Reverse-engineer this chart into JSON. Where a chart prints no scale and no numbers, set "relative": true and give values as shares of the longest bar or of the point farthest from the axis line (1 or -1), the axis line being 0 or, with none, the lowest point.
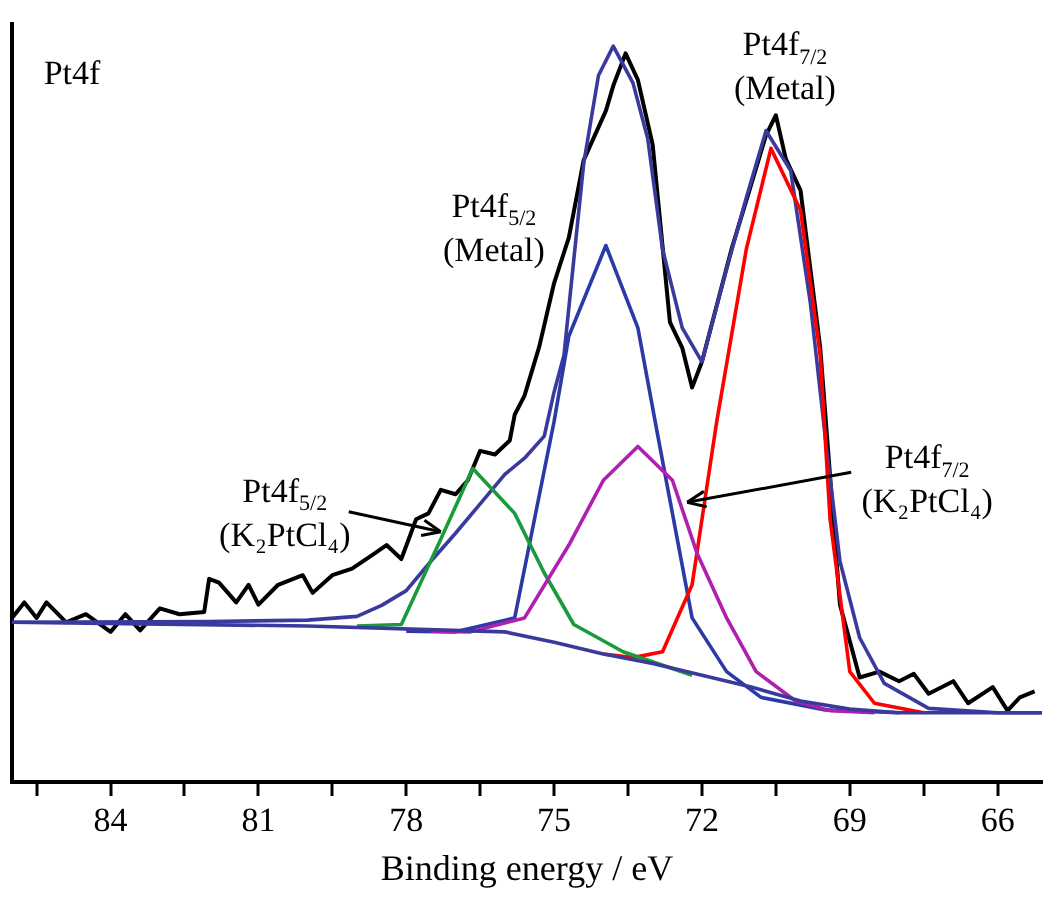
{
  "chart_data": {
    "type": "line",
    "xlabel": "Binding energy / eV",
    "xlim": [
      86,
      65.1
    ],
    "xticks": [
      84,
      {
        "value": 82.5,
        "label": null
      },
      81,
      {
        "value": 79.5,
        "label": null
      },
      78,
      {
        "value": 76.5,
        "label": null
      },
      75,
      {
        "value": 73.5,
        "label": null
      },
      72,
      {
        "value": 70.5,
        "label": null
      },
      69,
      {
        "value": 67.5,
        "label": null
      },
      66,
      {
        "value": 85.5,
        "label": null
      }
    ],
    "relative": true,
    "grid": false,
    "legend": false,
    "marker": "none",
    "line_style": "solid",
    "annotations": [
      "Pt4f",
      {
        "text": "Pt4f$_{5/2}$\n(Metal)",
        "x": 73.95,
        "y": 0.73
      },
      {
        "text": "Pt4f$_{7/2}$\n(Metal)",
        "x": 70.6,
        "y": 0.86
      },
      {
        "text": "Pt4f$_{5/2}$\n(K₂PtCl₄)",
        "x": 77.3,
        "y": 0.34
      },
      {
        "text": "Pt4f$_{7/2}$\n(K₂PtCl₄)",
        "x": 72.3,
        "y": 0.38
      }
    ],
    "series": [
      {
        "color": "#000000",
        "x": [
          86,
          85.75,
          85.5,
          85.3,
          84.9,
          84.5,
          84.0,
          83.7,
          83.4,
          83.0,
          82.6,
          82.1,
          82.0,
          81.8,
          81.45,
          81.2,
          81.0,
          80.6,
          80.1,
          79.9,
          79.5,
          79.1,
          78.7,
          78.4,
          78.1,
          77.8,
          77.55,
          77.3,
          77.0,
          76.75,
          76.5,
          76.2,
          75.9,
          75.8,
          75.6,
          75.3,
          75.0,
          74.7,
          74.4,
          73.95,
          73.8,
          73.55,
          73.3,
          73.0,
          72.65,
          72.4,
          72.2,
          72.0,
          71.4,
          71.0,
          70.7,
          70.5,
          70.3,
          70.0,
          69.6,
          69.2,
          68.8,
          68.4,
          68.0,
          67.7,
          67.4,
          66.9,
          66.6,
          66.1,
          65.8,
          65.55,
          65.25
        ],
        "values": [
          0.223,
          0.244,
          0.223,
          0.244,
          0.217,
          0.228,
          0.204,
          0.228,
          0.206,
          0.236,
          0.228,
          0.231,
          0.276,
          0.271,
          0.244,
          0.268,
          0.241,
          0.268,
          0.281,
          0.257,
          0.281,
          0.29,
          0.308,
          0.322,
          0.303,
          0.357,
          0.365,
          0.397,
          0.391,
          0.41,
          0.45,
          0.445,
          0.464,
          0.499,
          0.525,
          0.592,
          0.678,
          0.74,
          0.845,
          0.912,
          0.946,
          0.99,
          0.954,
          0.866,
          0.625,
          0.59,
          0.536,
          0.571,
          0.724,
          0.812,
          0.879,
          0.906,
          0.847,
          0.804,
          0.59,
          0.241,
          0.142,
          0.15,
          0.137,
          0.147,
          0.12,
          0.137,
          0.107,
          0.129,
          0.097,
          0.115,
          0.123
        ]
      },
      {
        "color": "#3a3a9e",
        "x": [
          86,
          82,
          80,
          79,
          78.5,
          78,
          77.5,
          77,
          76.5,
          76,
          75.6,
          75.2,
          75,
          74.8,
          74.4,
          74.1,
          73.8,
          73.4,
          73.1,
          72.8,
          72.4,
          72.0,
          71.5,
          71.1,
          70.7,
          70.2,
          69.8,
          69.5,
          69.2,
          68.8,
          68.3,
          67.4,
          66,
          65.1
        ],
        "values": [
          0.217,
          0.218,
          0.22,
          0.225,
          0.24,
          0.26,
          0.3,
          0.338,
          0.378,
          0.418,
          0.44,
          0.47,
          0.53,
          0.58,
          0.84,
          0.96,
          1.0,
          0.95,
          0.874,
          0.724,
          0.617,
          0.571,
          0.697,
          0.794,
          0.885,
          0.831,
          0.651,
          0.47,
          0.3,
          0.196,
          0.134,
          0.1,
          0.094,
          0.094
        ]
      },
      {
        "color": "#2b3aa6",
        "x": [
          78,
          77,
          75.8,
          75,
          74.7,
          73.95,
          73.3,
          72.9,
          72.2,
          71.5,
          70.8,
          69.5,
          68
        ],
        "values": [
          0.205,
          0.204,
          0.223,
          0.49,
          0.606,
          0.729,
          0.617,
          0.472,
          0.223,
          0.15,
          0.115,
          0.098,
          0.094
        ]
      },
      {
        "color": "#ff0000",
        "x": [
          74,
          73.4,
          72.8,
          72.2,
          71.7,
          71.1,
          70.6,
          70.0,
          69.6,
          69.4,
          69.0,
          68.5,
          67.5
        ],
        "values": [
          0.174,
          0.169,
          0.177,
          0.268,
          0.49,
          0.724,
          0.861,
          0.777,
          0.58,
          0.357,
          0.15,
          0.107,
          0.094
        ]
      },
      {
        "color": "#1a9a3a",
        "x": [
          79,
          78.1,
          77.3,
          76.65,
          75.8,
          75.2,
          74.6,
          73.6,
          72.9,
          72.2
        ],
        "values": [
          0.212,
          0.214,
          0.33,
          0.426,
          0.365,
          0.284,
          0.214,
          0.177,
          0.161,
          0.145
        ]
      },
      {
        "color": "#b020b0",
        "x": [
          77.5,
          76.7,
          75.6,
          74.7,
          74.0,
          73.3,
          72.6,
          72.1,
          71.5,
          70.9,
          70.1,
          69.4,
          68.5
        ],
        "values": [
          0.205,
          0.204,
          0.223,
          0.322,
          0.41,
          0.456,
          0.41,
          0.311,
          0.223,
          0.15,
          0.11,
          0.097,
          0.094
        ]
      },
      {
        "color": "#3a3a9e",
        "x": [
          86,
          80,
          76,
          75,
          74,
          73,
          72,
          71,
          70,
          69,
          68,
          65.1
        ],
        "values": [
          0.217,
          0.212,
          0.204,
          0.19,
          0.174,
          0.161,
          0.145,
          0.129,
          0.11,
          0.099,
          0.094,
          0.094
        ]
      }
    ]
  }
}
